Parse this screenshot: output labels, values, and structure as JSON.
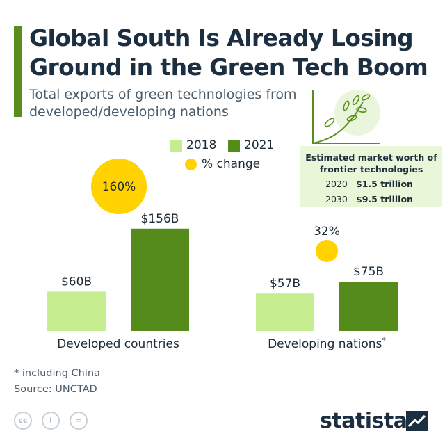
{
  "title": "Global South Is Already Losing Ground in the Green Tech Boom",
  "subtitle": "Total exports of green technologies from developed/developing nations",
  "colors": {
    "accent": "#5b8d1e",
    "light_green": "#c6ed8f",
    "dark_green": "#558b1b",
    "change": "#ffd200",
    "infobox_bg": "#e9f6d8"
  },
  "legend": {
    "s2018": "2018",
    "s2021": "2021",
    "change": "% change"
  },
  "infobox": {
    "title": "Estimated market worth of frontier technologies",
    "rows": [
      {
        "year": "2020",
        "value": "$1.5 trillion"
      },
      {
        "year": "2030",
        "value": "$9.5 trillion"
      }
    ],
    "icon": "sprout-growth-icon"
  },
  "chart_data": {
    "type": "bar",
    "categories": [
      "Developed countries",
      "Developing nations"
    ],
    "category_markers": [
      "",
      "*"
    ],
    "series": [
      {
        "name": "2018",
        "values": [
          60,
          57
        ],
        "labels": [
          "$60B",
          "$57B"
        ]
      },
      {
        "name": "2021",
        "values": [
          156,
          75
        ],
        "labels": [
          "$156B",
          "$75B"
        ]
      }
    ],
    "pct_change": {
      "name": "% change",
      "values": [
        160,
        32
      ],
      "labels": [
        "160%",
        "32%"
      ]
    },
    "unit": "B",
    "ylim": [
      0,
      160
    ],
    "grid": false,
    "legend_position": "top-center"
  },
  "footnotes": {
    "note": "* including China",
    "source": "Source: UNCTAD"
  },
  "license_icons": [
    "cc-icon",
    "by-person-icon",
    "nd-equals-icon"
  ],
  "license_glyphs": [
    "cc",
    "i",
    "="
  ],
  "brand": "statista"
}
